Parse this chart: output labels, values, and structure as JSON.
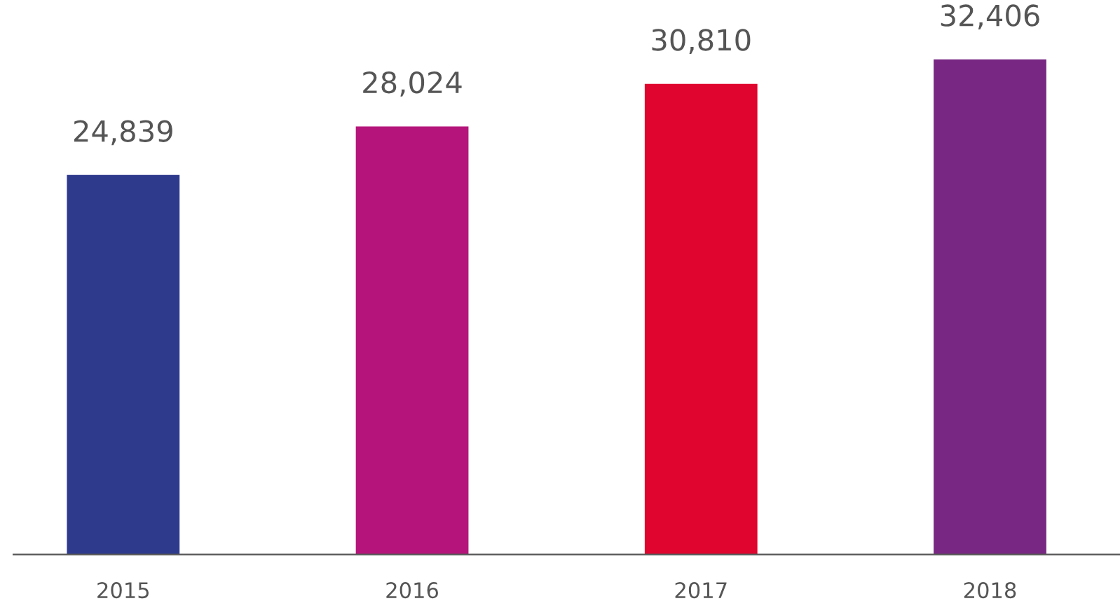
{
  "chart_data": {
    "type": "bar",
    "categories": [
      "2015",
      "2016",
      "2017",
      "2018"
    ],
    "values": [
      24839,
      28024,
      30810,
      32406
    ],
    "value_labels": [
      "24,839",
      "28,024",
      "30,810",
      "32,406"
    ],
    "colors": [
      "#2e3a8c",
      "#b5157a",
      "#e0052f",
      "#782882"
    ],
    "tick_labels": "x",
    "grid": false
  }
}
